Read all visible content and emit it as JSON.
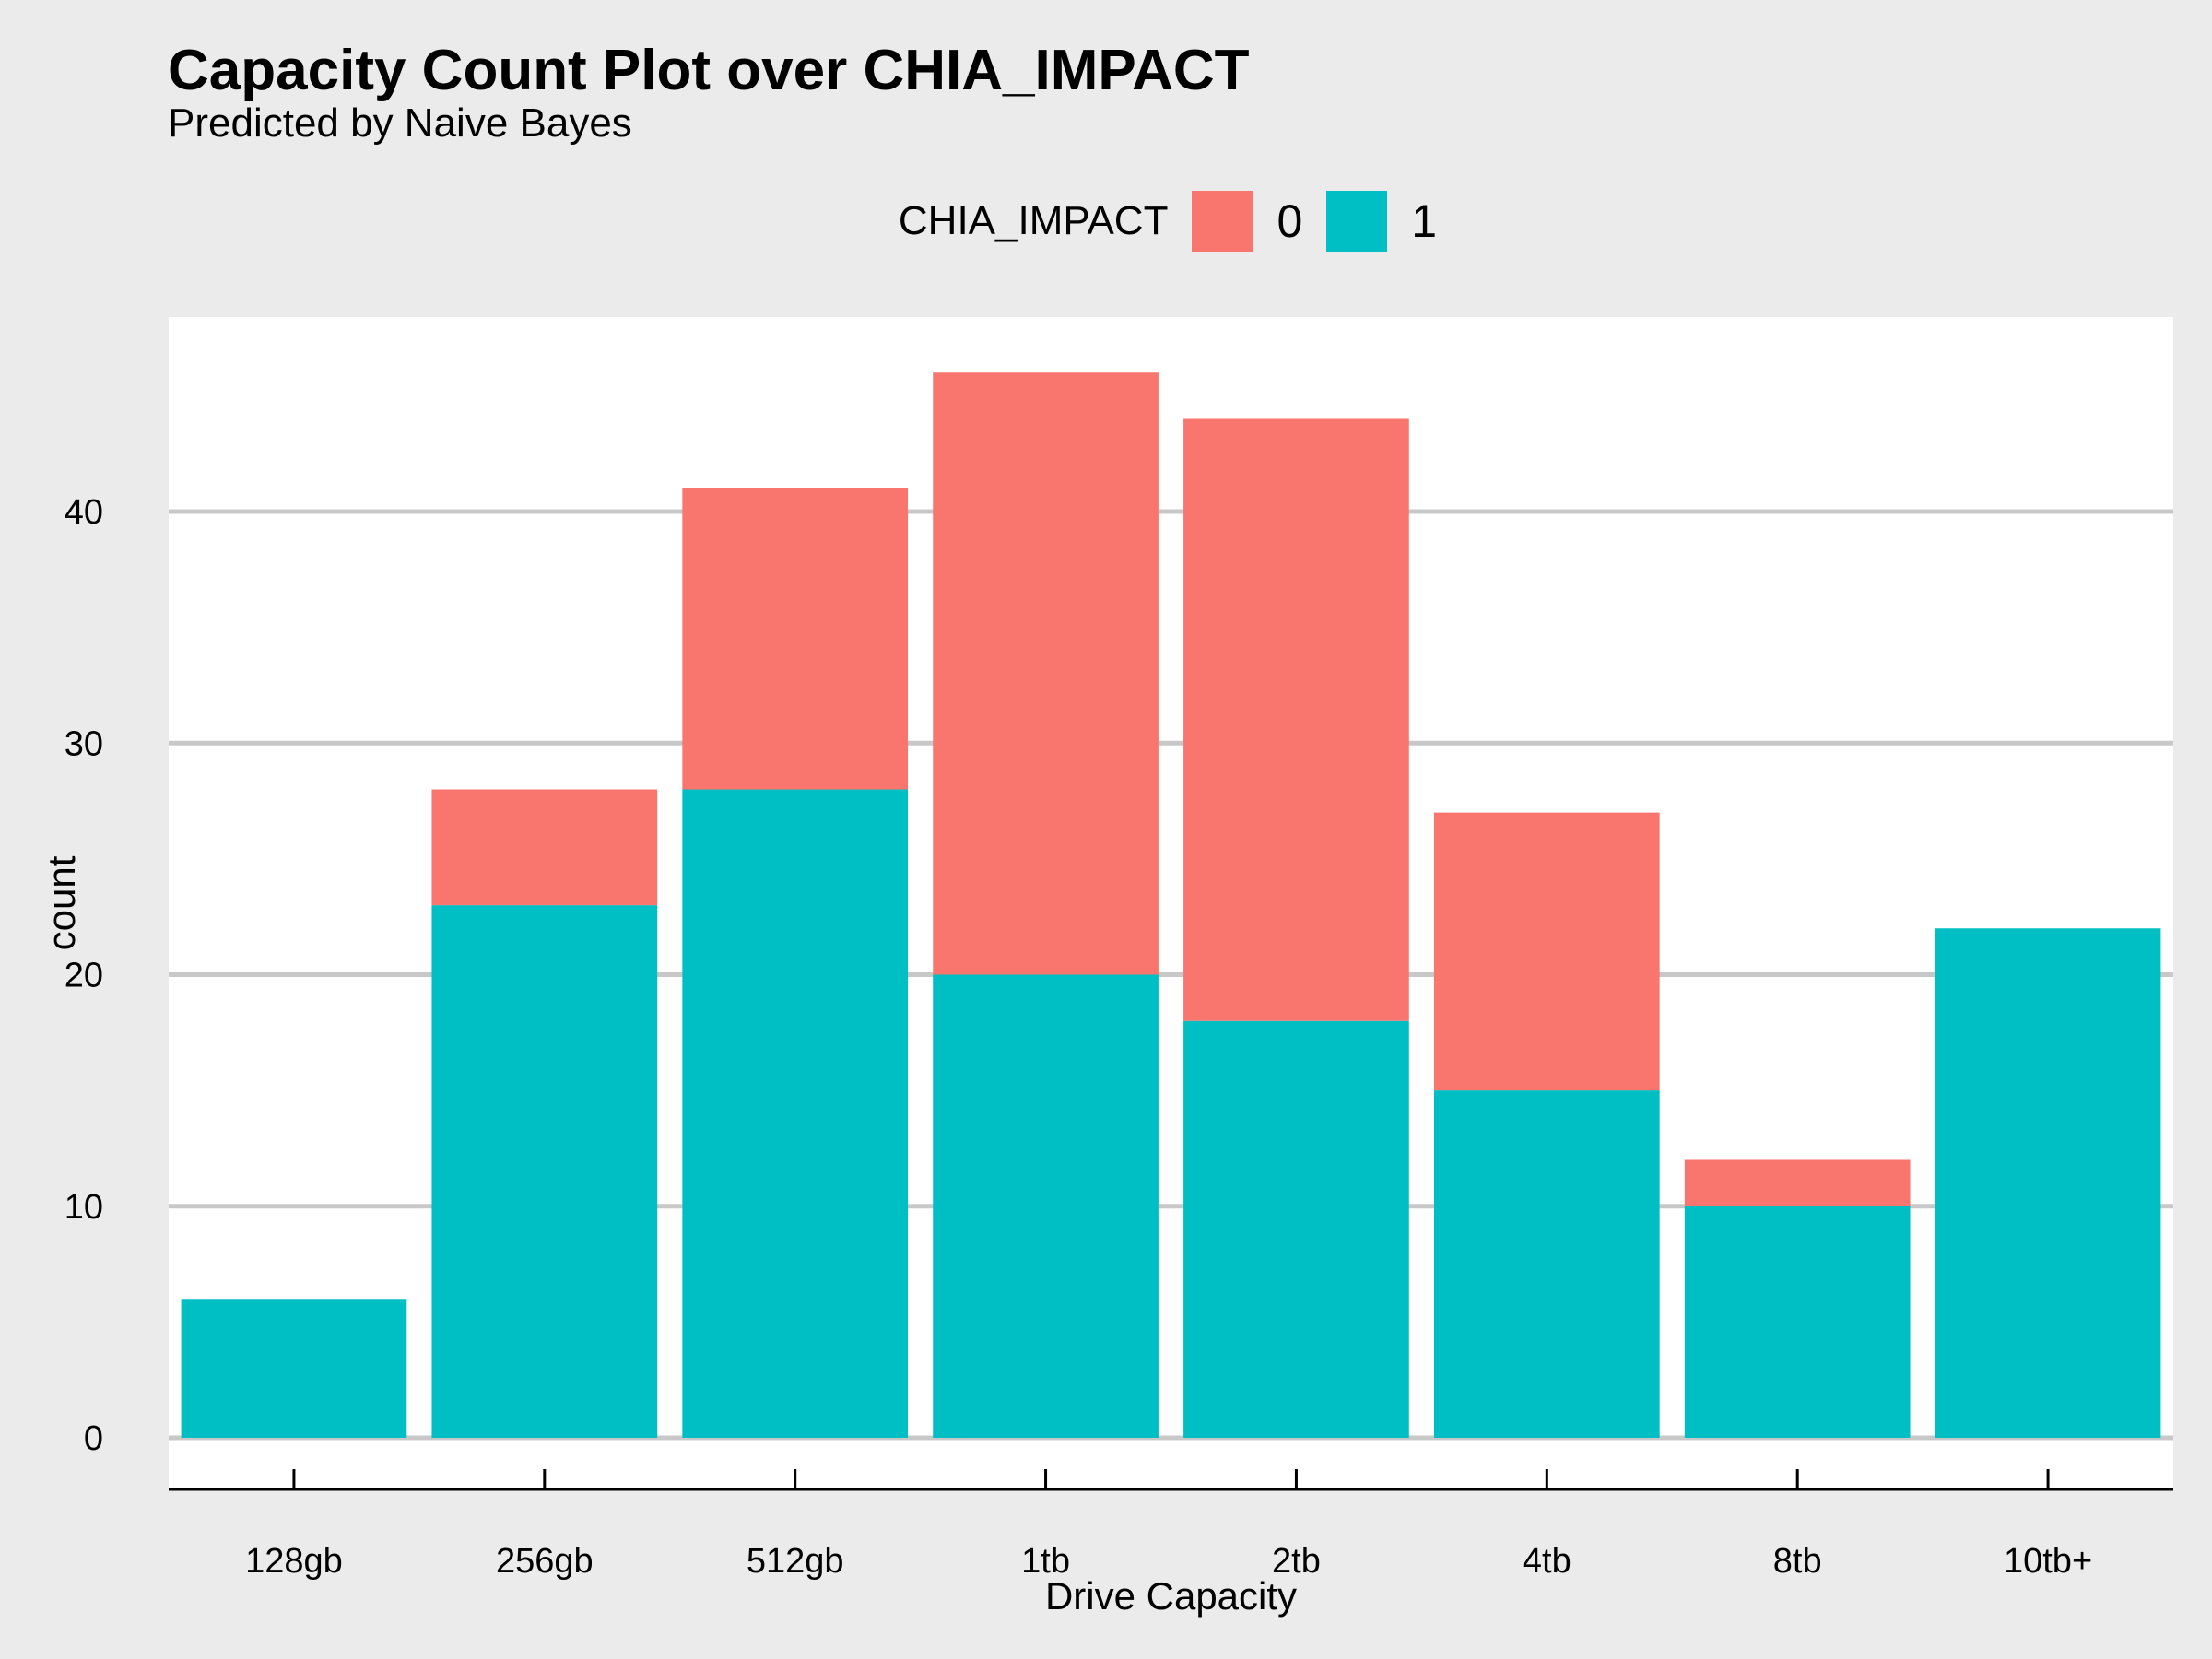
{
  "chart_data": {
    "type": "bar",
    "stacked": true,
    "title": "Capacity Count Plot over CHIA_IMPACT",
    "subtitle": "Predicted by Naive Bayes",
    "xlabel": "Drive Capacity",
    "ylabel": "count",
    "categories": [
      "128gb",
      "256gb",
      "512gb",
      "1tb",
      "2tb",
      "4tb",
      "8tb",
      "10tb+"
    ],
    "series": [
      {
        "name": "1",
        "color": "#00BFC4",
        "values": [
          6,
          23,
          28,
          20,
          18,
          15,
          10,
          22
        ]
      },
      {
        "name": "0",
        "color": "#F8766D",
        "values": [
          0,
          5,
          13,
          26,
          26,
          12,
          2,
          0
        ]
      }
    ],
    "ylim": [
      0,
      48
    ],
    "yticks": [
      0,
      10,
      20,
      30,
      40
    ],
    "grid": true,
    "legend": {
      "title": "CHIA_IMPACT",
      "position": "top",
      "items": [
        {
          "label": "0",
          "color": "#F8766D"
        },
        {
          "label": "1",
          "color": "#00BFC4"
        }
      ]
    }
  }
}
